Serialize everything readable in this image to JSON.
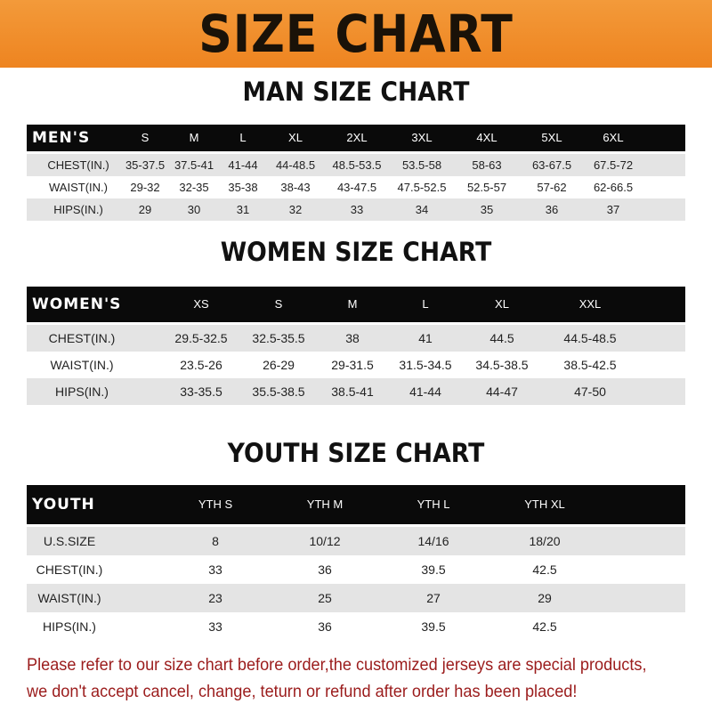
{
  "banner_title": "SIZE CHART",
  "colors": {
    "banner": "#ef8a26",
    "header_row": "#0a0a0a",
    "stripe": "#e4e4e4",
    "note_text": "#9b1c1c"
  },
  "men": {
    "title": "MAN SIZE CHART",
    "headers": [
      "MEN'S",
      "S",
      "M",
      "L",
      "XL",
      "2XL",
      "3XL",
      "4XL",
      "5XL",
      "6XL"
    ],
    "rows": [
      [
        "CHEST(IN.)",
        "35-37.5",
        "37.5-41",
        "41-44",
        "44-48.5",
        "48.5-53.5",
        "53.5-58",
        "58-63",
        "63-67.5",
        "67.5-72"
      ],
      [
        "WAIST(IN.)",
        "29-32",
        "32-35",
        "35-38",
        "38-43",
        "43-47.5",
        "47.5-52.5",
        "52.5-57",
        "57-62",
        "62-66.5"
      ],
      [
        "HIPS(IN.)",
        "29",
        "30",
        "31",
        "32",
        "33",
        "34",
        "35",
        "36",
        "37"
      ]
    ]
  },
  "women": {
    "title": "WOMEN SIZE CHART",
    "headers": [
      "WOMEN'S",
      "XS",
      "S",
      "M",
      "L",
      "XL",
      "XXL"
    ],
    "rows": [
      [
        "CHEST(IN.)",
        "29.5-32.5",
        "32.5-35.5",
        "38",
        "41",
        "44.5",
        "44.5-48.5"
      ],
      [
        "WAIST(IN.)",
        "23.5-26",
        "26-29",
        "29-31.5",
        "31.5-34.5",
        "34.5-38.5",
        "38.5-42.5"
      ],
      [
        "HIPS(IN.)",
        "33-35.5",
        "35.5-38.5",
        "38.5-41",
        "41-44",
        "44-47",
        "47-50"
      ]
    ]
  },
  "youth": {
    "title": "YOUTH SIZE CHART",
    "headers": [
      "YOUTH",
      "YTH S",
      "YTH M",
      "YTH L",
      "YTH XL"
    ],
    "rows": [
      [
        "U.S.SIZE",
        "8",
        "10/12",
        "14/16",
        "18/20"
      ],
      [
        "CHEST(IN.)",
        "33",
        "36",
        "39.5",
        "42.5"
      ],
      [
        "WAIST(IN.)",
        "23",
        "25",
        "27",
        "29"
      ],
      [
        "HIPS(IN.)",
        "33",
        "36",
        "39.5",
        "42.5"
      ]
    ]
  },
  "note": {
    "line1": "Please refer to our size chart before order,the customized jerseys are special products,",
    "line2": "we don't accept cancel, change, teturn or refund after order has been placed!"
  }
}
